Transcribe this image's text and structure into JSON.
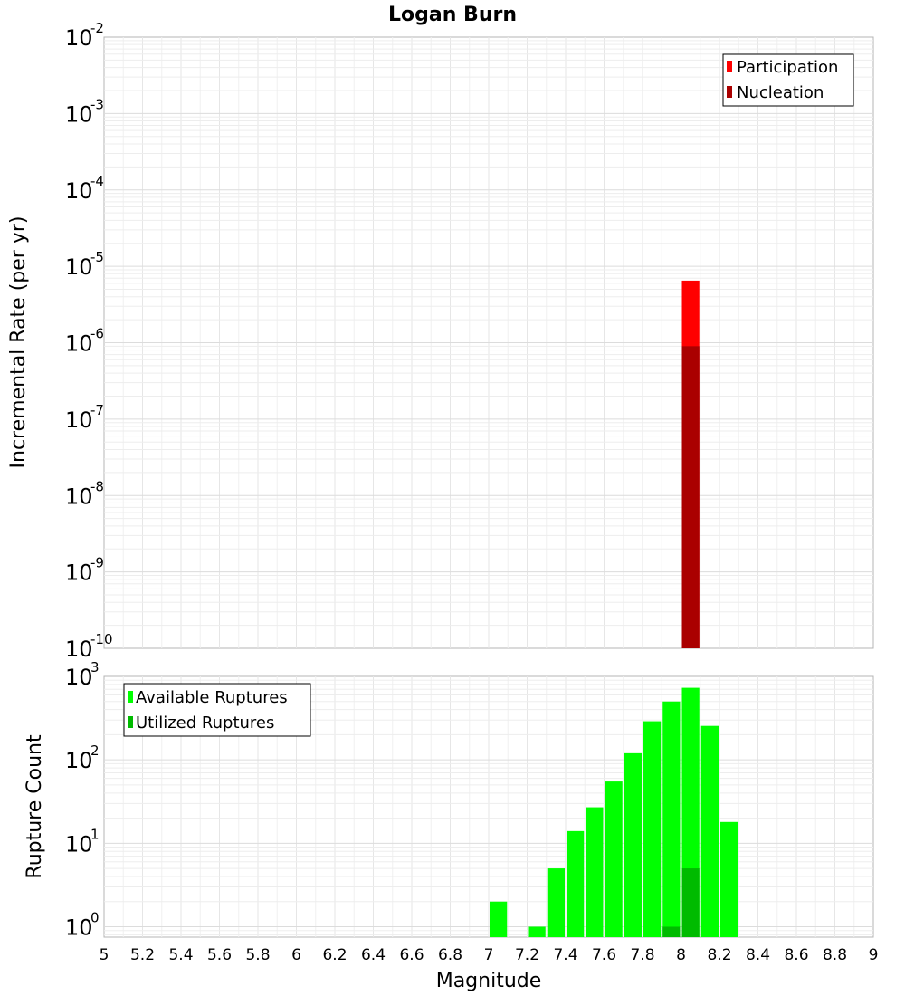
{
  "chart_data": [
    {
      "type": "bar",
      "title": "Logan Burn",
      "xlabel": "",
      "ylabel": "Incremental Rate (per yr)",
      "y_scale": "log",
      "xlim": [
        5,
        9
      ],
      "ylim": [
        1e-10,
        0.01
      ],
      "grid": true,
      "legend_position": "top-right",
      "series": [
        {
          "name": "Participation",
          "color": "#ff0000",
          "x": [
            8.05
          ],
          "values": [
            6.5e-06
          ]
        },
        {
          "name": "Nucleation",
          "color": "#aa0000",
          "x": [
            8.05
          ],
          "values": [
            9e-07
          ]
        }
      ],
      "y_ticks": [
        {
          "base": "10",
          "exp": "-2",
          "value": 0.01
        },
        {
          "base": "10",
          "exp": "-3",
          "value": 0.001
        },
        {
          "base": "10",
          "exp": "-4",
          "value": 0.0001
        },
        {
          "base": "10",
          "exp": "-5",
          "value": 1e-05
        },
        {
          "base": "10",
          "exp": "-6",
          "value": 1e-06
        },
        {
          "base": "10",
          "exp": "-7",
          "value": 1e-07
        },
        {
          "base": "10",
          "exp": "-8",
          "value": 1e-08
        },
        {
          "base": "10",
          "exp": "-9",
          "value": 1e-09
        },
        {
          "base": "10",
          "exp": "-10",
          "value": 1e-10
        }
      ]
    },
    {
      "type": "bar",
      "xlabel": "Magnitude",
      "ylabel": "Rupture Count",
      "y_scale": "log",
      "xlim": [
        5,
        9
      ],
      "ylim": [
        0.75,
        1000
      ],
      "grid": true,
      "legend_position": "top-left",
      "series": [
        {
          "name": "Available Ruptures",
          "color": "#00ff00",
          "x": [
            7.05,
            7.25,
            7.35,
            7.45,
            7.55,
            7.65,
            7.75,
            7.85,
            7.95,
            8.05,
            8.15,
            8.25
          ],
          "values": [
            2,
            1,
            5,
            14,
            27,
            55,
            120,
            290,
            500,
            730,
            255,
            18
          ]
        },
        {
          "name": "Utilized Ruptures",
          "color": "#00bb00",
          "x": [
            7.95,
            8.05
          ],
          "values": [
            1,
            5
          ]
        }
      ],
      "y_ticks": [
        {
          "base": "10",
          "exp": "3",
          "value": 1000
        },
        {
          "base": "10",
          "exp": "2",
          "value": 100
        },
        {
          "base": "10",
          "exp": "1",
          "value": 10
        },
        {
          "base": "10",
          "exp": "0",
          "value": 1
        }
      ],
      "x_ticks": [
        "5",
        "5.2",
        "5.4",
        "5.6",
        "5.8",
        "6",
        "6.2",
        "6.4",
        "6.6",
        "6.8",
        "7",
        "7.2",
        "7.4",
        "7.6",
        "7.8",
        "8",
        "8.2",
        "8.4",
        "8.6",
        "8.8",
        "9"
      ]
    }
  ]
}
